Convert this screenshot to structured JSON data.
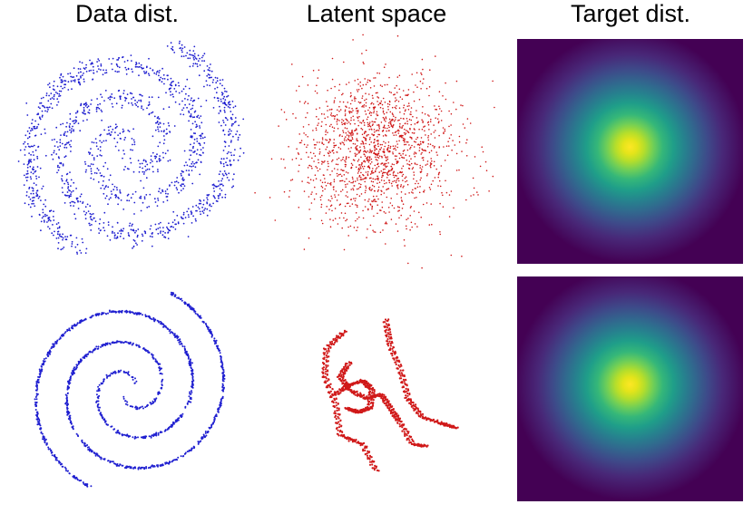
{
  "titles": {
    "data_dist": "Data dist.",
    "latent_space": "Latent space",
    "target_dist": "Target dist."
  },
  "colors": {
    "data_points": "#1f1fd0",
    "latent_points": "#d01818",
    "heatmap_peak": "#fde725",
    "heatmap_base": "#440154"
  },
  "panels": [
    {
      "row": 1,
      "column": "Data dist.",
      "content": "noisy two-arm spiral point cloud"
    },
    {
      "row": 1,
      "column": "Latent space",
      "content": "gaussian-like scattered point cloud"
    },
    {
      "row": 1,
      "column": "Target dist.",
      "content": "2D standard normal density heatmap"
    },
    {
      "row": 2,
      "column": "Data dist.",
      "content": "clean two-arm spiral curves"
    },
    {
      "row": 2,
      "column": "Latent space",
      "content": "wiggly folded curves"
    },
    {
      "row": 2,
      "column": "Target dist.",
      "content": "2D standard normal density heatmap"
    }
  ]
}
